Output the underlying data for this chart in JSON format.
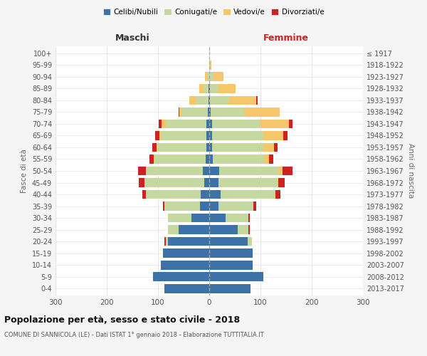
{
  "age_groups": [
    "0-4",
    "5-9",
    "10-14",
    "15-19",
    "20-24",
    "25-29",
    "30-34",
    "35-39",
    "40-44",
    "45-49",
    "50-54",
    "55-59",
    "60-64",
    "65-69",
    "70-74",
    "75-79",
    "80-84",
    "85-89",
    "90-94",
    "95-99",
    "100+"
  ],
  "birth_years": [
    "2013-2017",
    "2008-2012",
    "2003-2007",
    "1998-2002",
    "1993-1997",
    "1988-1992",
    "1983-1987",
    "1978-1982",
    "1973-1977",
    "1968-1972",
    "1963-1967",
    "1958-1962",
    "1953-1957",
    "1948-1952",
    "1943-1947",
    "1938-1942",
    "1933-1937",
    "1928-1932",
    "1923-1927",
    "1918-1922",
    "≤ 1917"
  ],
  "males": {
    "celibi": [
      88,
      110,
      95,
      90,
      80,
      60,
      35,
      18,
      17,
      10,
      12,
      7,
      6,
      5,
      5,
      3,
      2,
      1,
      0,
      0,
      0
    ],
    "coniugati": [
      0,
      0,
      0,
      0,
      5,
      20,
      45,
      70,
      105,
      115,
      110,
      100,
      95,
      90,
      80,
      50,
      25,
      10,
      4,
      0,
      0
    ],
    "vedovi": [
      0,
      0,
      0,
      0,
      0,
      0,
      0,
      0,
      1,
      1,
      2,
      2,
      2,
      2,
      8,
      5,
      12,
      8,
      4,
      0,
      0
    ],
    "divorziati": [
      0,
      0,
      0,
      0,
      2,
      0,
      0,
      2,
      8,
      12,
      15,
      8,
      8,
      8,
      5,
      2,
      0,
      0,
      0,
      0,
      0
    ]
  },
  "females": {
    "nubili": [
      80,
      105,
      85,
      85,
      75,
      55,
      32,
      18,
      22,
      18,
      20,
      7,
      6,
      5,
      5,
      3,
      2,
      1,
      0,
      0,
      0
    ],
    "coniugate": [
      0,
      0,
      0,
      0,
      8,
      22,
      45,
      68,
      105,
      115,
      115,
      100,
      100,
      100,
      95,
      65,
      35,
      15,
      8,
      2,
      0
    ],
    "vedove": [
      0,
      0,
      0,
      0,
      0,
      0,
      0,
      0,
      2,
      2,
      8,
      10,
      20,
      40,
      55,
      70,
      55,
      35,
      20,
      2,
      0
    ],
    "divorziate": [
      0,
      0,
      0,
      0,
      0,
      2,
      2,
      5,
      10,
      12,
      20,
      8,
      8,
      8,
      8,
      0,
      2,
      0,
      0,
      0,
      0
    ]
  },
  "colors": {
    "celibi": "#3d72a8",
    "coniugati": "#c5d8a0",
    "vedovi": "#f5c76a",
    "divorziati": "#cc2222"
  },
  "xlim": 300,
  "title": "Popolazione per età, sesso e stato civile - 2018",
  "subtitle": "COMUNE DI SANNICOLA (LE) - Dati ISTAT 1° gennaio 2018 - Elaborazione TUTTITALIA.IT",
  "ylabel": "Fasce di età",
  "ylabel2": "Anni di nascita",
  "xlabel_left": "Maschi",
  "xlabel_right": "Femmine",
  "legend_labels": [
    "Celibi/Nubili",
    "Coniugati/e",
    "Vedovi/e",
    "Divorziati/e"
  ],
  "bg_color": "#f5f5f5",
  "plot_bg_color": "#ffffff",
  "xticks": [
    -300,
    -200,
    -100,
    0,
    100,
    200,
    300
  ]
}
